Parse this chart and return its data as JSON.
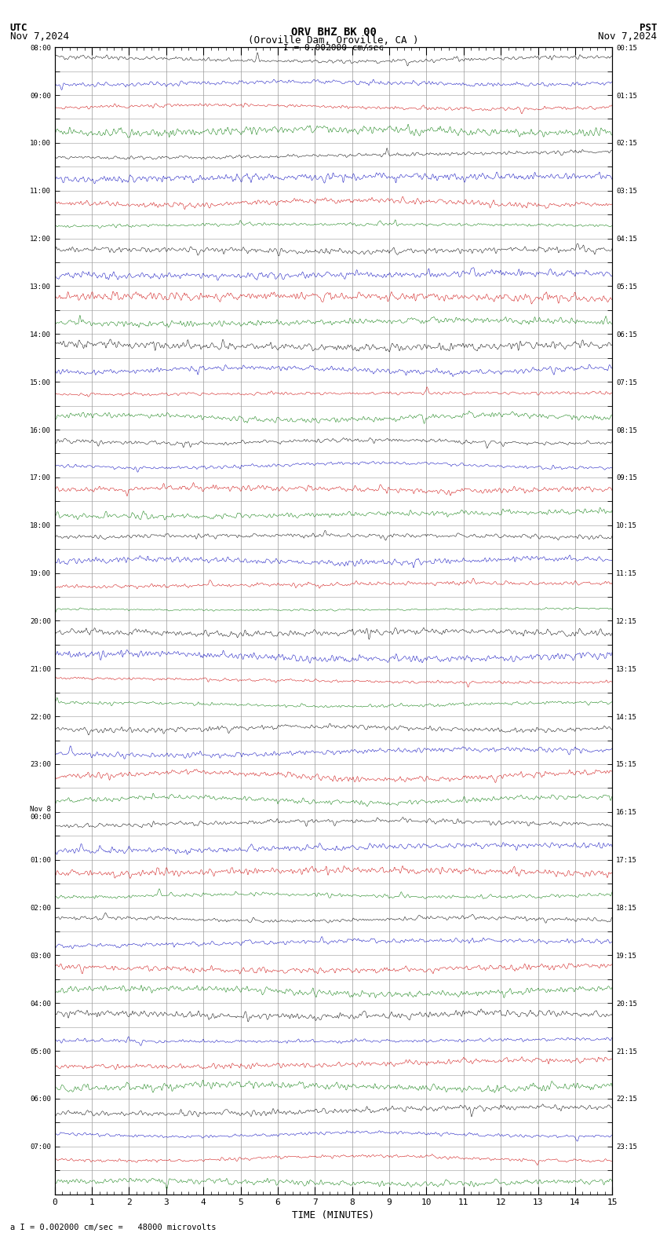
{
  "title_line1": "ORV BHZ BK 00",
  "title_line2": "(Oroville Dam, Oroville, CA )",
  "scale_text": "I = 0.002000 cm/sec",
  "utc_label": "UTC",
  "utc_date": "Nov 7,2024",
  "pst_label": "PST",
  "pst_date": "Nov 7,2024",
  "bottom_label": "a I = 0.002000 cm/sec =   48000 microvolts",
  "xlabel": "TIME (MINUTES)",
  "xlim": [
    0,
    15
  ],
  "xticks": [
    0,
    1,
    2,
    3,
    4,
    5,
    6,
    7,
    8,
    9,
    10,
    11,
    12,
    13,
    14,
    15
  ],
  "num_rows": 48,
  "bg_color": "#ffffff",
  "grid_color": "#999999",
  "trace_colors": [
    "#000000",
    "#0000bb",
    "#cc0000",
    "#007700"
  ],
  "left_labels_utc": [
    "08:00",
    "",
    "09:00",
    "",
    "10:00",
    "",
    "11:00",
    "",
    "12:00",
    "",
    "13:00",
    "",
    "14:00",
    "",
    "15:00",
    "",
    "16:00",
    "",
    "17:00",
    "",
    "18:00",
    "",
    "19:00",
    "",
    "20:00",
    "",
    "21:00",
    "",
    "22:00",
    "",
    "23:00",
    "",
    "Nov 8\n00:00",
    "",
    "01:00",
    "",
    "02:00",
    "",
    "03:00",
    "",
    "04:00",
    "",
    "05:00",
    "",
    "06:00",
    "",
    "07:00",
    ""
  ],
  "right_labels_pst": [
    "00:15",
    "",
    "01:15",
    "",
    "02:15",
    "",
    "03:15",
    "",
    "04:15",
    "",
    "05:15",
    "",
    "06:15",
    "",
    "07:15",
    "",
    "08:15",
    "",
    "09:15",
    "",
    "10:15",
    "",
    "11:15",
    "",
    "12:15",
    "",
    "13:15",
    "",
    "14:15",
    "",
    "15:15",
    "",
    "16:15",
    "",
    "17:15",
    "",
    "18:15",
    "",
    "19:15",
    "",
    "20:15",
    "",
    "21:15",
    "",
    "22:15",
    "",
    "23:15",
    ""
  ]
}
